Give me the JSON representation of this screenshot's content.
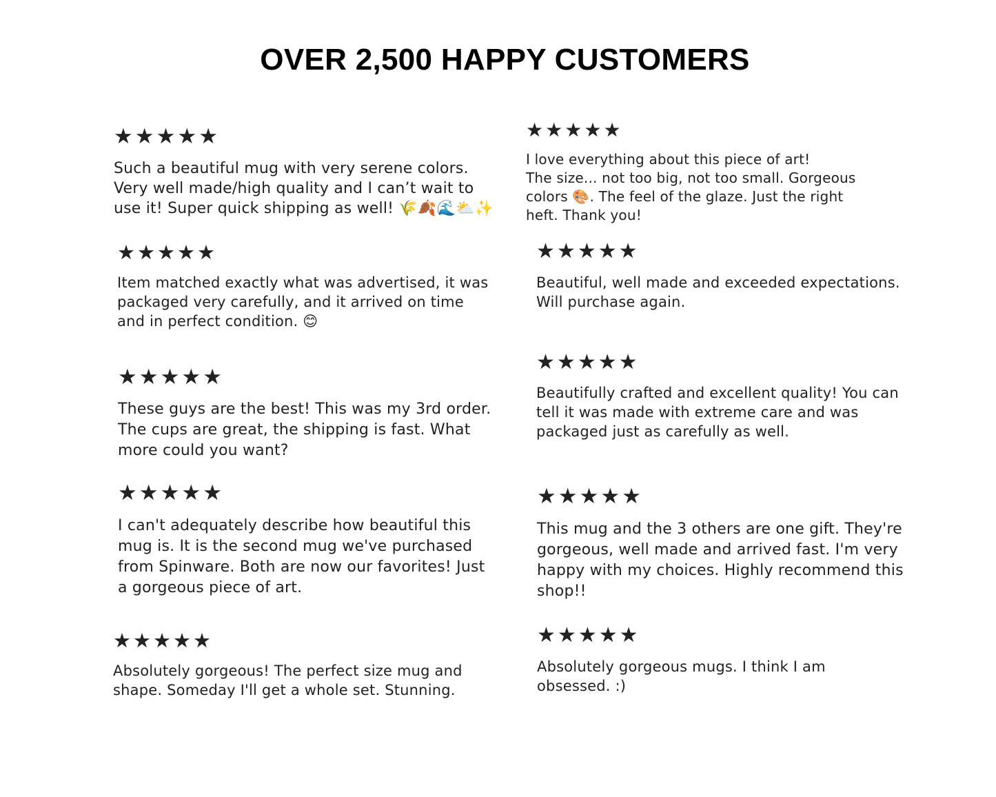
{
  "header": {
    "title": "OVER 2,500 HAPPY CUSTOMERS"
  },
  "star_glyph": "★",
  "star_color": "#222222",
  "reviews": [
    {
      "column": "left",
      "rating": 5,
      "lines": [
        "Such a beautiful mug with very serene colors.",
        "Very well made/high quality and I can’t wait to",
        "use it! Super quick shipping as well! 🌾🍂🌊⛅✨"
      ]
    },
    {
      "column": "left",
      "rating": 5,
      "lines": [
        "Item matched exactly what was advertised, it was",
        "packaged very carefully, and it arrived on time",
        "and in perfect condition. 😊"
      ]
    },
    {
      "column": "left",
      "rating": 5,
      "lines": [
        "These guys are the best! This was my 3rd order.",
        "The cups are great, the shipping is fast. What",
        "more could you want?"
      ]
    },
    {
      "column": "left",
      "rating": 5,
      "lines": [
        "I can't adequately describe how beautiful this",
        "mug is.  It is the second mug we've purchased",
        "from Spinware.  Both are now our favorites!  Just",
        "a gorgeous piece of art."
      ]
    },
    {
      "column": "left",
      "rating": 5,
      "lines": [
        "Absolutely gorgeous! The perfect size mug and",
        "shape. Someday I'll get a whole set. Stunning."
      ]
    },
    {
      "column": "right",
      "rating": 5,
      "lines": [
        "I love everything about this piece of art!",
        "The size... not too big, not too small. Gorgeous",
        "colors 🎨.  The feel of the glaze. Just the right",
        "heft. Thank you!"
      ]
    },
    {
      "column": "right",
      "rating": 5,
      "lines": [
        "Beautiful, well made and exceeded expectations.",
        "Will purchase again."
      ]
    },
    {
      "column": "right",
      "rating": 5,
      "lines": [
        "Beautifully crafted and excellent quality! You can",
        "tell it was made with extreme care and was",
        "packaged just as carefully as well."
      ]
    },
    {
      "column": "right",
      "rating": 5,
      "lines": [
        "This mug and the 3 others are one gift. They're",
        "gorgeous, well made and arrived fast. I'm very",
        "happy with my choices. Highly recommend this",
        "shop!!"
      ]
    },
    {
      "column": "right",
      "rating": 5,
      "lines": [
        "Absolutely gorgeous mugs. I think I am",
        "obsessed. :)"
      ]
    }
  ]
}
